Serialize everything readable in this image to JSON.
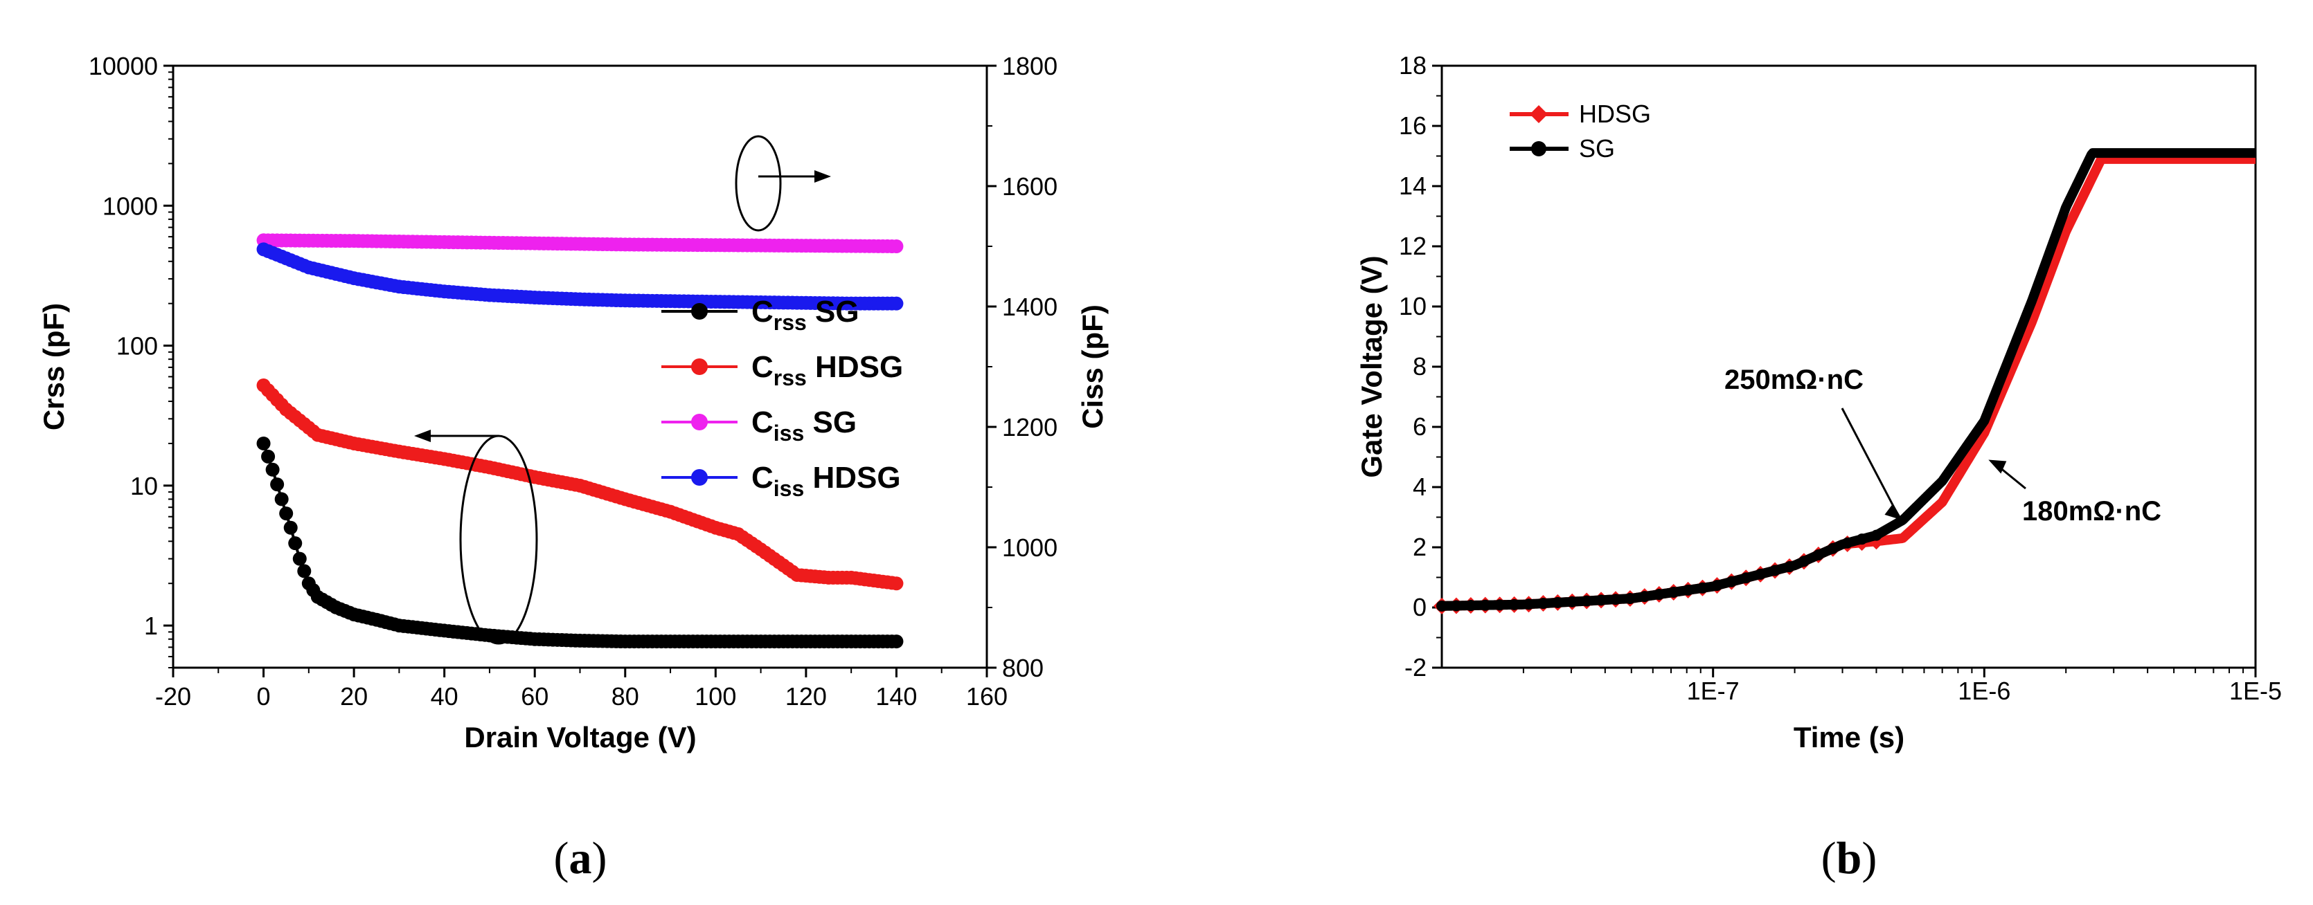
{
  "chart_data": [
    {
      "panel_label": "a",
      "type": "scatter",
      "xlabel": "Drain Voltage (V)",
      "ylabel_left": "Crss (pF)",
      "ylabel_right": "Ciss (pF)",
      "xlim": [
        -20,
        160
      ],
      "xticks": [
        -20,
        0,
        20,
        40,
        60,
        80,
        100,
        120,
        140,
        160
      ],
      "ylim_left": [
        0.5,
        10000
      ],
      "ylog_left": true,
      "yticks_left": [
        1,
        10,
        100,
        1000,
        10000
      ],
      "ylim_right": [
        800,
        1800
      ],
      "yticks_right": [
        800,
        1000,
        1200,
        1400,
        1600,
        1800
      ],
      "legend": [
        {
          "label": "C",
          "sub": "rss",
          "suffix": " SG",
          "color": "#000000"
        },
        {
          "label": "C",
          "sub": "rss",
          "suffix": " HDSG",
          "color": "#ee1c1c"
        },
        {
          "label": "C",
          "sub": "iss",
          "suffix": " SG",
          "color": "#ee22ee"
        },
        {
          "label": "C",
          "sub": "iss",
          "suffix": " HDSG",
          "color": "#1a1aee"
        }
      ],
      "series": [
        {
          "name": "Crss SG",
          "axis": "left",
          "color": "#000000",
          "x": [
            0,
            2,
            4,
            6,
            8,
            10,
            12,
            16,
            20,
            25,
            30,
            40,
            50,
            60,
            70,
            80,
            90,
            100,
            110,
            120,
            130,
            140
          ],
          "y": [
            20,
            13,
            8,
            5,
            3,
            2,
            1.6,
            1.35,
            1.2,
            1.1,
            1.0,
            0.92,
            0.85,
            0.8,
            0.78,
            0.77,
            0.77,
            0.77,
            0.77,
            0.77,
            0.77,
            0.77
          ]
        },
        {
          "name": "Crss HDSG",
          "axis": "left",
          "color": "#ee1c1c",
          "x": [
            0,
            5,
            12,
            20,
            30,
            40,
            50,
            60,
            70,
            80,
            90,
            100,
            105,
            110,
            118,
            125,
            130,
            140
          ],
          "y": [
            52,
            35,
            23,
            20,
            17.5,
            15.5,
            13.5,
            11.5,
            10,
            8,
            6.5,
            5,
            4.5,
            3.5,
            2.3,
            2.2,
            2.2,
            2.0
          ]
        },
        {
          "name": "Ciss SG",
          "axis": "right",
          "color": "#ee22ee",
          "x": [
            0,
            20,
            40,
            60,
            80,
            100,
            120,
            140
          ],
          "y": [
            1510,
            1509,
            1507,
            1505,
            1503,
            1502,
            1501,
            1500
          ]
        },
        {
          "name": "Ciss HDSG",
          "axis": "right",
          "color": "#1a1aee",
          "x": [
            0,
            5,
            10,
            20,
            30,
            40,
            50,
            60,
            70,
            80,
            90,
            100,
            110,
            120,
            130,
            140
          ],
          "y": [
            1495,
            1480,
            1465,
            1447,
            1433,
            1425,
            1419,
            1415,
            1412,
            1410,
            1409,
            1408,
            1407,
            1406,
            1405,
            1405
          ]
        }
      ],
      "annotations": [
        {
          "kind": "ellipse-arrow",
          "target": "right-axis"
        },
        {
          "kind": "ellipse-arrow",
          "target": "left-axis"
        }
      ]
    },
    {
      "panel_label": "b",
      "type": "line",
      "xlabel": "Time (s)",
      "ylabel": "Gate Voltage (V)",
      "xlog": true,
      "xlim": [
        1e-08,
        1e-05
      ],
      "xticks": [
        {
          "v": 1e-07,
          "label": "1E-7"
        },
        {
          "v": 1e-06,
          "label": "1E-6"
        },
        {
          "v": 1e-05,
          "label": "1E-5"
        }
      ],
      "ylim": [
        -2,
        18
      ],
      "yticks": [
        -2,
        0,
        2,
        4,
        6,
        8,
        10,
        12,
        14,
        16,
        18
      ],
      "legend": [
        {
          "label": "HDSG",
          "color": "#ee1c1c",
          "marker": "diamond"
        },
        {
          "label": "SG",
          "color": "#000000",
          "marker": "circle"
        }
      ],
      "series": [
        {
          "name": "HDSG",
          "color": "#ee1c1c",
          "x": [
            1e-08,
            2e-08,
            5e-08,
            1e-07,
            2e-07,
            3e-07,
            4e-07,
            5e-07,
            7e-07,
            1e-06,
            1.5e-06,
            2e-06,
            2.7e-06,
            5e-06,
            1e-05
          ],
          "y": [
            0.05,
            0.1,
            0.3,
            0.7,
            1.4,
            2.1,
            2.2,
            2.3,
            3.5,
            5.8,
            9.5,
            12.5,
            14.9,
            14.9,
            14.9
          ]
        },
        {
          "name": "SG",
          "color": "#000000",
          "x": [
            1e-08,
            2e-08,
            5e-08,
            1e-07,
            2e-07,
            3e-07,
            4e-07,
            5e-07,
            7e-07,
            1e-06,
            1.5e-06,
            2e-06,
            2.5e-06,
            5e-06,
            1e-05
          ],
          "y": [
            0.05,
            0.1,
            0.3,
            0.7,
            1.4,
            2.1,
            2.4,
            2.9,
            4.2,
            6.2,
            10.2,
            13.3,
            15.1,
            15.1,
            15.1
          ]
        }
      ],
      "annotations": [
        {
          "text": "250mΩ·nC",
          "target_x": 5e-07,
          "target_y": 2.9
        },
        {
          "text": "180mΩ·nC",
          "target_x": 1e-06,
          "target_y": 5.0
        }
      ]
    }
  ]
}
